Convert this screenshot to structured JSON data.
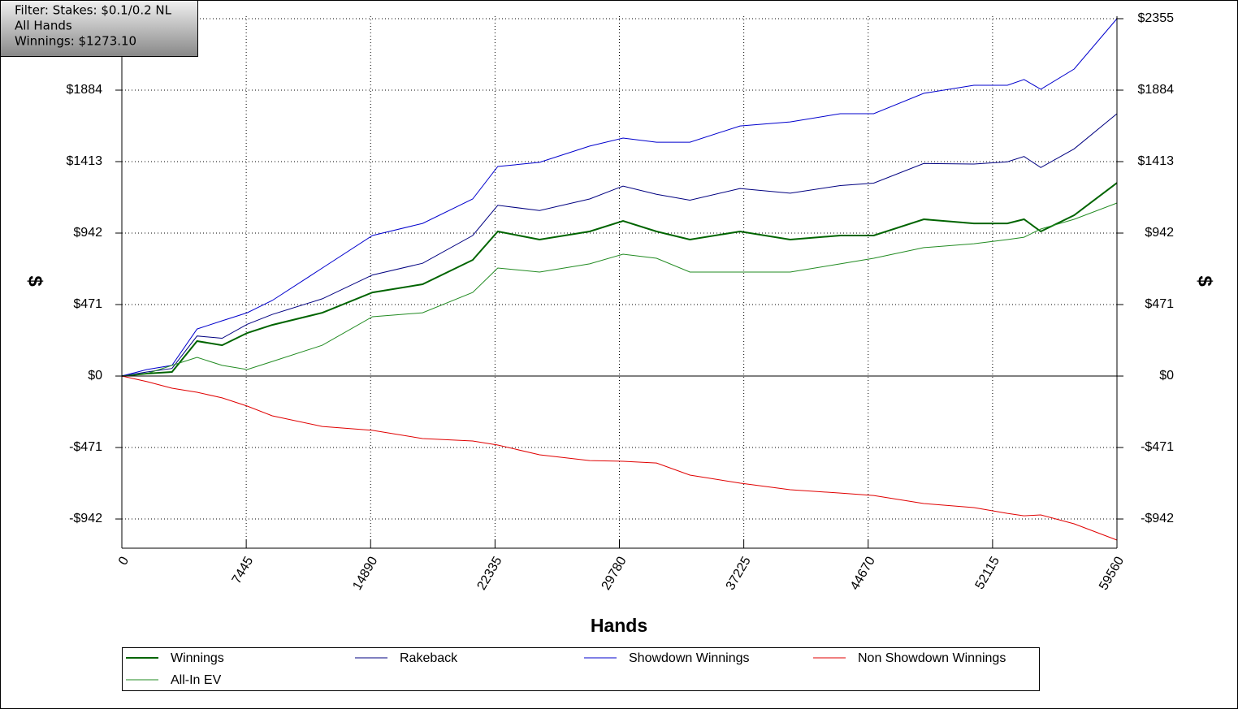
{
  "chart_data": {
    "type": "line",
    "annotations": [
      "Filter: Stakes: $0.1/0.2 NL",
      "All Hands",
      "Winnings: $1273.10"
    ],
    "x_label": "Hands",
    "y_label": "$",
    "x": [
      0,
      1500,
      3000,
      4500,
      6000,
      7500,
      9000,
      12000,
      15000,
      18000,
      21000,
      22500,
      25000,
      28000,
      30000,
      32000,
      34000,
      37000,
      40000,
      43000,
      45000,
      48000,
      51000,
      53000,
      54000,
      55000,
      57000,
      59560
    ],
    "series": [
      {
        "name": "Winnings",
        "color": "#006400",
        "values": [
          0,
          16,
          27,
          230,
          203,
          284,
          337,
          417,
          551,
          605,
          765,
          953,
          899,
          953,
          1022,
          953,
          899,
          953,
          899,
          926,
          926,
          1033,
          1006,
          1006,
          1033,
          953,
          1060,
          1273
        ]
      },
      {
        "name": "Rakeback",
        "color": "#000080",
        "values": [
          0,
          27,
          50,
          264,
          249,
          341,
          406,
          509,
          666,
          743,
          926,
          1125,
          1091,
          1167,
          1252,
          1198,
          1159,
          1236,
          1205,
          1255,
          1271,
          1401,
          1397,
          1412,
          1447,
          1374,
          1497,
          1729
        ]
      },
      {
        "name": "Showdown Winnings",
        "color": "#0000cd",
        "values": [
          0,
          43,
          70,
          310,
          364,
          417,
          498,
          712,
          926,
          1006,
          1167,
          1381,
          1408,
          1515,
          1568,
          1541,
          1541,
          1648,
          1675,
          1729,
          1729,
          1863,
          1916,
          1916,
          1954,
          1890,
          2023,
          2355
        ]
      },
      {
        "name": "Non Showdown Winnings",
        "color": "#e00000",
        "values": [
          0,
          -37,
          -80,
          -107,
          -144,
          -198,
          -262,
          -332,
          -358,
          -412,
          -428,
          -455,
          -519,
          -557,
          -562,
          -573,
          -653,
          -706,
          -749,
          -771,
          -787,
          -840,
          -867,
          -905,
          -921,
          -915,
          -974,
          -1081
        ]
      },
      {
        "name": "All-In EV",
        "color": "#228b22",
        "values": [
          0,
          16,
          70,
          123,
          70,
          43,
          96,
          203,
          391,
          417,
          551,
          712,
          685,
          739,
          803,
          776,
          685,
          685,
          685,
          739,
          776,
          846,
          872,
          899,
          915,
          969,
          1033,
          1140
        ]
      }
    ],
    "xlim": [
      0,
      59560
    ],
    "xticks": [
      0,
      7445,
      14890,
      22335,
      29780,
      37225,
      44670,
      52115,
      59560
    ],
    "ylim": [
      -1081,
      2355
    ],
    "yticks": [
      {
        "value": -942,
        "label": "-$942"
      },
      {
        "value": -471,
        "label": "-$471"
      },
      {
        "value": 0,
        "label": "$0"
      },
      {
        "value": 471,
        "label": "$471"
      },
      {
        "value": 942,
        "label": "$942"
      },
      {
        "value": 1413,
        "label": "$1413"
      },
      {
        "value": 1884,
        "label": "$1884"
      },
      {
        "value": 2355,
        "label": "$2355"
      }
    ],
    "grid": true
  }
}
